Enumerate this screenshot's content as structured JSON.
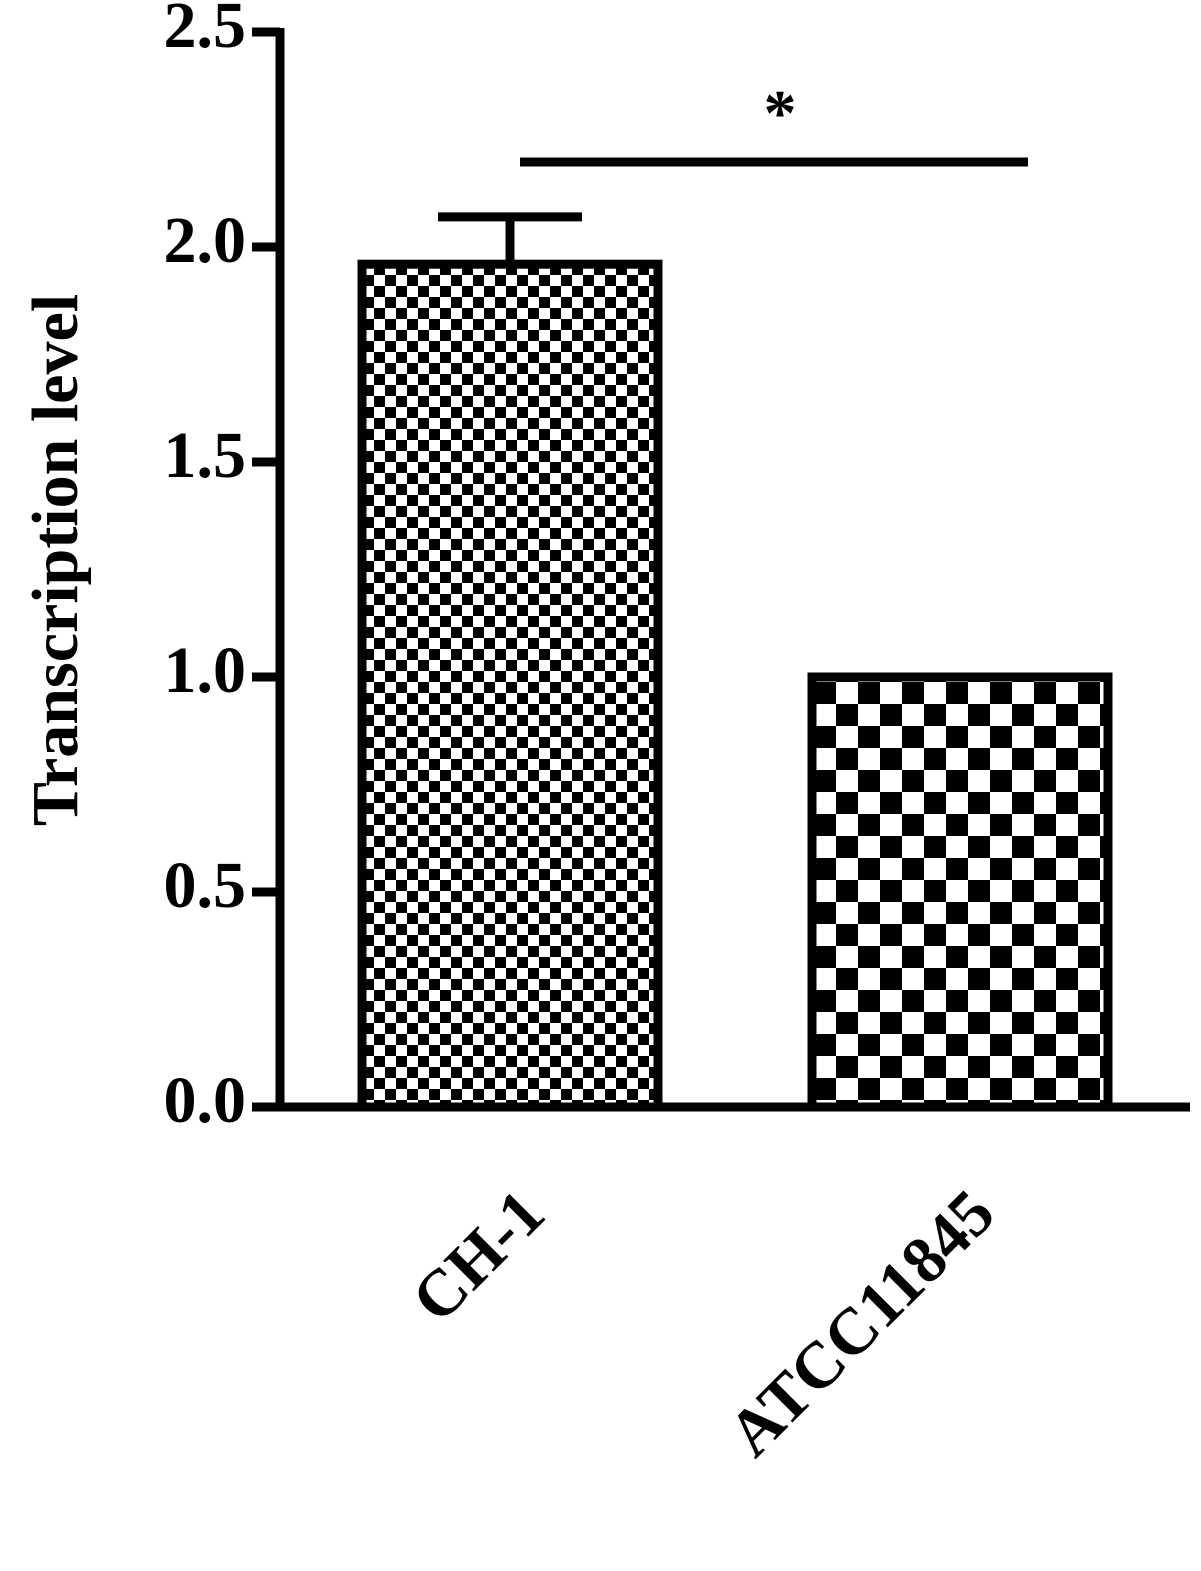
{
  "chart_data": {
    "type": "bar",
    "y_label": "Transcription level",
    "categories": [
      "CH-1",
      "ATCC11845"
    ],
    "values": [
      1.96,
      1.0
    ],
    "errors": [
      0.11,
      null
    ],
    "annotations": [
      "*"
    ],
    "ylim": [
      0,
      2.5
    ],
    "yticks": [
      {
        "value": 0,
        "label": "0.0"
      },
      {
        "value": 0.5,
        "label": "0.5"
      },
      {
        "value": 1,
        "label": "1.0"
      },
      {
        "value": 1.5,
        "label": "1.5"
      },
      {
        "value": 2,
        "label": "2.0"
      },
      {
        "value": 2.5,
        "label": "2.5"
      }
    ],
    "color": "#000000"
  }
}
